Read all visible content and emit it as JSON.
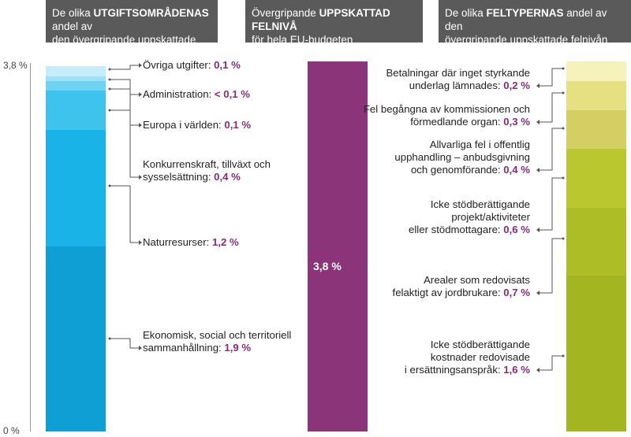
{
  "headers": {
    "left": {
      "pre": "De olika ",
      "bold": "UTGIFTSOMRÅDENAS",
      "post1": " andel av",
      "line2": "den övergripande uppskattade felnivån"
    },
    "center": {
      "pre": "Övergripande ",
      "bold": "UPPSKATTAD FELNIVÅ",
      "line2": "för hela EU-budgeten"
    },
    "right": {
      "pre": "De olika ",
      "bold": "FELTYPERNAS",
      "post1": " andel av den",
      "line2": "övergripande uppskattade felnivån"
    }
  },
  "y_axis": {
    "top_label": "3,8 %",
    "bottom_label": "0 %"
  },
  "center_value": "3,8 %",
  "colors": {
    "header_bg": "#5a5a5a",
    "value_text": "#8a2a7a",
    "center_bar": "#8b3479"
  },
  "chart_data": [
    {
      "type": "bar",
      "stacked": true,
      "total": 3.8,
      "ylim": [
        0,
        3.8
      ],
      "series": [
        {
          "name": "Ekonomisk, social och territoriell sammanhållning",
          "value": 1.9,
          "value_label": "1,9 %",
          "color": "#0f9fd4"
        },
        {
          "name": "Naturresurser",
          "value": 1.2,
          "value_label": "1,2 %",
          "color": "#19b3e8"
        },
        {
          "name": "Konkurrenskraft, tillväxt och sysselsättning",
          "value": 0.4,
          "value_label": "0,4 %",
          "color": "#3ec4ec"
        },
        {
          "name": "Europa i världen",
          "value": 0.1,
          "value_label": "0,1 %",
          "color": "#6ed2f1"
        },
        {
          "name": "Administration",
          "value": 0.05,
          "value_label": "< 0,1 %",
          "color": "#9ee0f5"
        },
        {
          "name": "Övriga utgifter",
          "value": 0.1,
          "value_label": "0,1 %",
          "color": "#c7ecfa"
        }
      ]
    },
    {
      "type": "bar",
      "total": 3.8,
      "ylim": [
        0,
        3.8
      ],
      "series": [
        {
          "value": 3.8,
          "value_label": "3,8 %",
          "color": "#8b3479"
        }
      ]
    },
    {
      "type": "bar",
      "stacked": true,
      "total": 3.8,
      "ylim": [
        0,
        3.8
      ],
      "series": [
        {
          "name": "Icke stödberättigande kostnader redovisade i ersättningsanspråk",
          "value": 1.6,
          "value_label": "1,6 %",
          "color": "#a3b521"
        },
        {
          "name": "Arealer som redovisats felaktigt av jordbrukare",
          "value": 0.7,
          "value_label": "0,7 %",
          "color": "#acbd26"
        },
        {
          "name": "Icke stödberättigande projekt/aktiviteter eller stödmottagare",
          "value": 0.6,
          "value_label": "0,6 %",
          "color": "#bac72e"
        },
        {
          "name": "Allvarliga fel i offentlig upphandling – anbudsgivning och genomförande",
          "value": 0.4,
          "value_label": "0,4 %",
          "color": "#d5ce62"
        },
        {
          "name": "Fel begångna av kommissionen och förmedlande organ",
          "value": 0.3,
          "value_label": "0,3 %",
          "color": "#e6e082"
        },
        {
          "name": "Betalningar där inget styrkande underlag lämnades",
          "value": 0.2,
          "value_label": "0,2 %",
          "color": "#f6f2bb"
        }
      ]
    }
  ],
  "left_labels": [
    {
      "lines": [
        "Ekonomisk, social och territoriell",
        "sammanhållning:"
      ],
      "value": "1,9 %"
    },
    {
      "lines": [
        "Naturresurser:"
      ],
      "value": "1,2 %"
    },
    {
      "lines": [
        "Konkurrenskraft, tillväxt och",
        "sysselsättning:"
      ],
      "value": "0,4 %"
    },
    {
      "lines": [
        "Europa i världen:"
      ],
      "value": "0,1 %"
    },
    {
      "lines": [
        "Administration:"
      ],
      "value": "< 0,1 %"
    },
    {
      "lines": [
        "Övriga utgifter:"
      ],
      "value": "0,1 %"
    }
  ],
  "right_labels": [
    {
      "lines": [
        "Icke stödberättigande",
        "kostnader redovisade",
        "i ersättningsanspråk:"
      ],
      "value": "1,6 %"
    },
    {
      "lines": [
        "Arealer som redovisats",
        "felaktigt av jordbrukare:"
      ],
      "value": "0,7 %"
    },
    {
      "lines": [
        "Icke stödberättigande",
        "projekt/aktiviteter",
        "eller stödmottagare:"
      ],
      "value": "0,6 %"
    },
    {
      "lines": [
        "Allvarliga fel i offentlig",
        "upphandling – anbudsgivning",
        "och genomförande:"
      ],
      "value": "0,4 %"
    },
    {
      "lines": [
        "Fel begångna av kommissionen och",
        "förmedlande organ:"
      ],
      "value": "0,3 %"
    },
    {
      "lines": [
        "Betalningar där inget styrkande",
        "underlag lämnades:"
      ],
      "value": "0,2 %"
    }
  ]
}
